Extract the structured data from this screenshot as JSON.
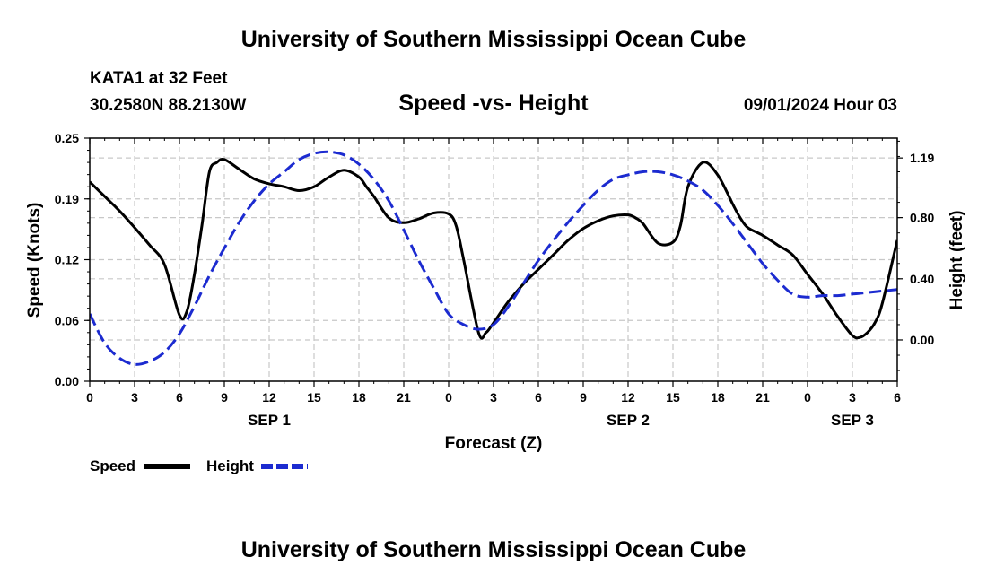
{
  "titles": {
    "top": "University of Southern Mississippi Ocean Cube",
    "bottom": "University of Southern Mississippi Ocean Cube"
  },
  "header": {
    "station": "KATA1 at 32 Feet",
    "coords": "30.2580N  88.2130W",
    "subtitle": "Speed -vs- Height",
    "datetime": "09/01/2024 Hour 03"
  },
  "colors": {
    "speed": "#000000",
    "height": "#1c2bd0",
    "grid": "#c8c8c8"
  },
  "chart_data": {
    "type": "line",
    "xlabel": "Forecast (Z)",
    "ylabel": "Speed (Knots)",
    "y2label": "Height (feet)",
    "xlim": [
      0,
      54
    ],
    "ylim": [
      0,
      0.25
    ],
    "y2lim": [
      -0.27,
      1.32
    ],
    "x_tick_labels": [
      "0",
      "3",
      "6",
      "9",
      "12",
      "15",
      "18",
      "21",
      "0",
      "3",
      "6",
      "9",
      "12",
      "15",
      "18",
      "21",
      "0",
      "3",
      "6"
    ],
    "y_tick_labels": [
      "0.00",
      "0.06",
      "0.12",
      "0.19",
      "0.25"
    ],
    "y2_tick_labels": [
      "0.00",
      "0.40",
      "0.80",
      "1.19"
    ],
    "day_labels": [
      {
        "label": "SEP 1",
        "x": 12
      },
      {
        "label": "SEP 2",
        "x": 36
      },
      {
        "label": "SEP 3",
        "x": 51
      }
    ],
    "grid": true,
    "legend_position": "bottom-left",
    "series": [
      {
        "name": "Speed",
        "axis": "left",
        "style": "solid",
        "x": [
          0,
          1,
          2,
          3,
          4,
          5,
          6,
          6.5,
          7,
          7.5,
          8,
          8.5,
          9,
          10,
          11,
          12,
          13,
          14,
          15,
          16,
          17,
          18,
          18.5,
          19,
          20,
          21,
          22,
          23,
          24,
          24.5,
          25,
          26,
          26.5,
          27,
          28,
          29,
          30,
          31,
          32,
          33,
          34,
          35,
          36,
          36.5,
          37,
          38,
          39,
          39.5,
          40,
          41,
          42,
          43,
          43.5,
          44,
          45,
          46,
          47,
          48,
          49,
          50,
          51,
          51.5,
          52,
          52.5,
          53,
          54
        ],
        "y": [
          0.205,
          0.19,
          0.175,
          0.158,
          0.14,
          0.12,
          0.068,
          0.072,
          0.11,
          0.16,
          0.215,
          0.225,
          0.228,
          0.218,
          0.208,
          0.203,
          0.2,
          0.196,
          0.2,
          0.21,
          0.217,
          0.21,
          0.2,
          0.19,
          0.168,
          0.163,
          0.167,
          0.173,
          0.172,
          0.16,
          0.125,
          0.05,
          0.05,
          0.06,
          0.082,
          0.1,
          0.115,
          0.13,
          0.145,
          0.157,
          0.165,
          0.17,
          0.171,
          0.168,
          0.162,
          0.142,
          0.143,
          0.16,
          0.2,
          0.225,
          0.212,
          0.182,
          0.168,
          0.158,
          0.15,
          0.14,
          0.13,
          0.11,
          0.09,
          0.067,
          0.047,
          0.045,
          0.05,
          0.06,
          0.08,
          0.145
        ]
      },
      {
        "name": "Height",
        "axis": "right",
        "style": "dashed",
        "x": [
          0,
          1,
          2,
          3,
          4,
          5,
          6,
          7,
          8,
          9,
          10,
          11,
          12,
          13,
          14,
          15,
          16,
          17,
          18,
          19,
          20,
          21,
          22,
          23,
          24,
          25,
          26,
          27,
          28,
          29,
          30,
          31,
          32,
          33,
          34,
          35,
          36,
          37,
          38,
          39,
          40,
          41,
          42,
          43,
          44,
          45,
          46,
          47,
          48,
          49,
          50,
          51,
          52,
          53,
          54
        ],
        "y": [
          0.17,
          -0.02,
          -0.12,
          -0.16,
          -0.14,
          -0.08,
          0.04,
          0.22,
          0.42,
          0.6,
          0.77,
          0.91,
          1.02,
          1.1,
          1.18,
          1.22,
          1.23,
          1.21,
          1.15,
          1.05,
          0.91,
          0.72,
          0.52,
          0.34,
          0.17,
          0.1,
          0.07,
          0.1,
          0.22,
          0.37,
          0.52,
          0.65,
          0.77,
          0.88,
          0.98,
          1.05,
          1.08,
          1.1,
          1.1,
          1.08,
          1.04,
          0.98,
          0.88,
          0.76,
          0.63,
          0.5,
          0.39,
          0.3,
          0.28,
          0.29,
          0.29,
          0.3,
          0.31,
          0.32,
          0.33
        ]
      }
    ]
  },
  "legend": {
    "speed_label": "Speed",
    "height_label": "Height"
  }
}
